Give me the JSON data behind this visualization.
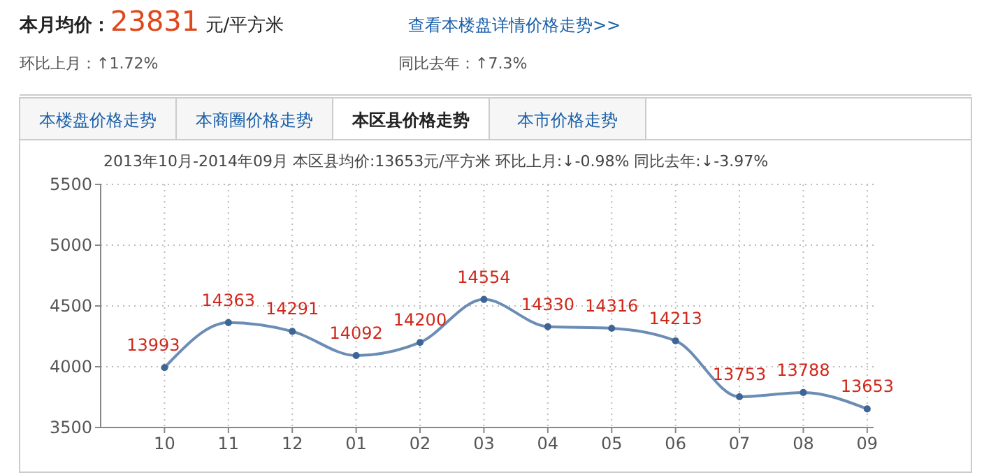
{
  "chart_data": {
    "type": "line",
    "title": "本月均价：23831 元/平方米",
    "subtitle": "2013年10月-2014年09月 本区县均价:13653元/平方米 环比上月:↓-0.98% 同比去年:↓-3.97%",
    "annotations": [
      "查看本楼盘详情价格走势>>",
      "环比上月：↑1.72%",
      "同比去年：↑7.3%",
      "本楼盘价格走势",
      "本商圈价格走势",
      "本区县价格走势",
      "本市价格走势",
      "3500",
      "4000",
      "4500",
      "5000",
      "5500"
    ],
    "categories": [
      "10",
      "11",
      "12",
      "01",
      "02",
      "03",
      "04",
      "05",
      "06",
      "07",
      "08",
      "09"
    ],
    "series": [
      {
        "color": "#6b8db5",
        "values": [
          13993,
          14363,
          14291,
          14092,
          14200,
          14554,
          14330,
          14316,
          14213,
          13753,
          13788,
          13653
        ]
      }
    ],
    "ylim": [
      13500,
      15500
    ],
    "yticks": [
      {
        "value": 13500,
        "label": null
      },
      {
        "value": 14000,
        "label": null
      },
      {
        "value": 14500,
        "label": null
      },
      {
        "value": 15000,
        "label": null
      },
      {
        "value": 15500,
        "label": null
      }
    ],
    "grid": true,
    "marker": "circle",
    "line_style": "solid",
    "data_labels": true
  }
}
